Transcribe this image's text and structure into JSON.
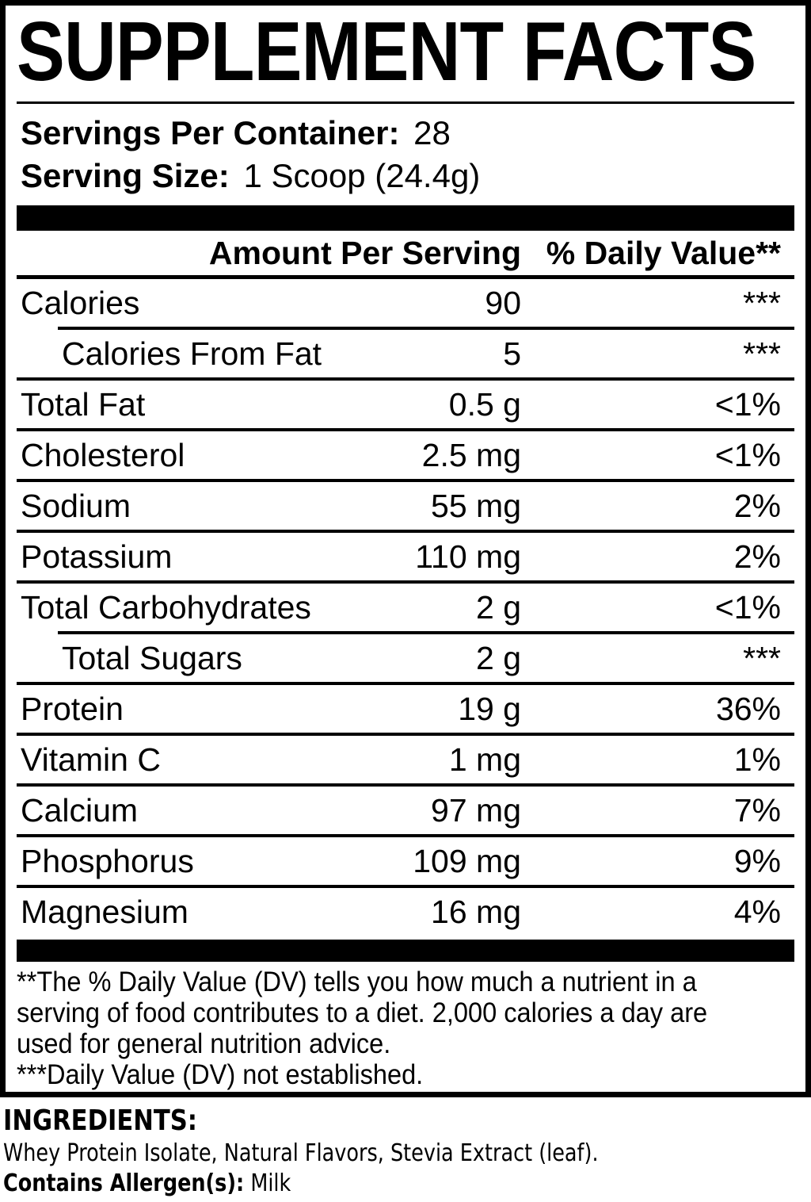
{
  "title": "SUPPLEMENT FACTS",
  "serving_info": {
    "servings_per_container_label": "Servings Per Container:",
    "servings_per_container_value": "28",
    "serving_size_label": "Serving Size:",
    "serving_size_value": "1 Scoop (24.4g)"
  },
  "table": {
    "headers": {
      "amount": "Amount Per Serving",
      "daily_value": "% Daily Value**"
    },
    "rows": [
      {
        "label": "Calories",
        "amount": "90",
        "dv": "***"
      },
      {
        "label": "Calories From Fat",
        "amount": "5",
        "dv": "***"
      },
      {
        "label": "Total Fat",
        "amount": "0.5 g",
        "dv": "<1%"
      },
      {
        "label": "Cholesterol",
        "amount": "2.5 mg",
        "dv": "<1%"
      },
      {
        "label": "Sodium",
        "amount": "55 mg",
        "dv": "2%"
      },
      {
        "label": "Potassium",
        "amount": "110 mg",
        "dv": "2%"
      },
      {
        "label": "Total Carbohydrates",
        "amount": "2 g",
        "dv": "<1%"
      },
      {
        "label": "Total Sugars",
        "amount": "2 g",
        "dv": "***"
      },
      {
        "label": "Protein",
        "amount": "19 g",
        "dv": "36%"
      },
      {
        "label": "Vitamin C",
        "amount": "1 mg",
        "dv": "1%"
      },
      {
        "label": "Calcium",
        "amount": "97 mg",
        "dv": "7%"
      },
      {
        "label": "Phosphorus",
        "amount": "109 mg",
        "dv": "9%"
      },
      {
        "label": "Magnesium",
        "amount": "16 mg",
        "dv": "4%"
      }
    ]
  },
  "footnotes": {
    "daily_value_lines": [
      "**The % Daily Value (DV) tells you how much a nutrient in a",
      "serving of food contributes to a diet. 2,000 calories a day are",
      "used for general nutrition advice."
    ],
    "not_established": "***Daily Value (DV) not established."
  },
  "ingredients": {
    "heading": "INGREDIENTS:",
    "list": "Whey Protein Isolate, Natural Flavors, Stevia Extract (leaf).",
    "allergen_label": "Contains Allergen(s):",
    "allergen_value": "Milk"
  },
  "colors": {
    "text": "#000000",
    "background": "#ffffff"
  }
}
